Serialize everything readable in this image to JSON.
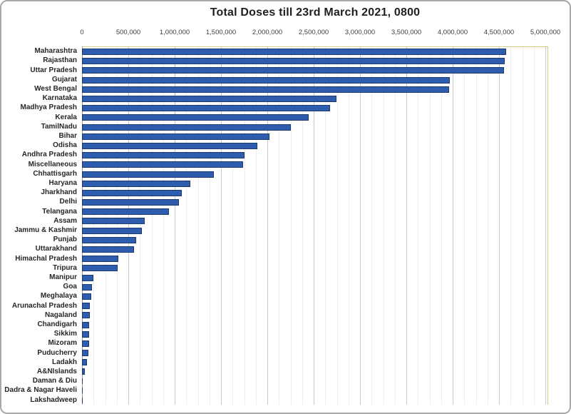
{
  "window": {
    "background": "#ffffff",
    "outer_border_color": "#a9a9a9"
  },
  "chart_data": {
    "type": "bar",
    "orientation": "horizontal",
    "title": "Total Doses till 23rd March 2021, 0800",
    "xlabel": "",
    "ylabel": "",
    "xlim": [
      0,
      5000000
    ],
    "x_major_unit": 500000,
    "x_minor_unit": 125000,
    "x_tick_labels": [
      "0",
      "500,000",
      "1,000,000",
      "1,500,000",
      "2,000,000",
      "2,500,000",
      "3,000,000",
      "3,500,000",
      "4,000,000",
      "4,500,000",
      "5,000,000"
    ],
    "grid": "vertical major and minor gridlines, ticks on top",
    "legend": "none",
    "categories": [
      "Maharashtra",
      "Rajasthan",
      "Uttar Pradesh",
      "Gujarat",
      "West Bengal",
      "Karnataka",
      "Madhya Pradesh",
      "Kerala",
      "TamilNadu",
      "Bihar",
      "Odisha",
      "Andhra Pradesh",
      "Miscellaneous",
      "Chhattisgarh",
      "Haryana",
      "Jharkhand",
      "Delhi",
      "Telangana",
      "Assam",
      "Jammu & Kashmir",
      "Punjab",
      "Uttarakhand",
      "Himachal Pradesh",
      "Tripura",
      "Manipur",
      "Goa",
      "Meghalaya",
      "Arunachal Pradesh",
      "Nagaland",
      "Chandigarh",
      "Sikkim",
      "Mizoram",
      "Puducherry",
      "Ladakh",
      "A&NIslands",
      "Daman & Diu",
      "Dadra & Nagar Haveli",
      "Lakshadweep"
    ],
    "values": [
      4560000,
      4545000,
      4540000,
      3955000,
      3945000,
      2730000,
      2660000,
      2430000,
      2240000,
      2010000,
      1875000,
      1740000,
      1720000,
      1410000,
      1155000,
      1060000,
      1030000,
      925000,
      665000,
      630000,
      570000,
      545000,
      375000,
      370000,
      105000,
      92000,
      87000,
      70000,
      68000,
      62000,
      61000,
      60000,
      54000,
      38000,
      16000,
      8000,
      7000,
      2000
    ],
    "colors": {
      "bar_fill": "#2e5cae",
      "bar_border": "#1e3a6a",
      "plot_border": "#d5cc83",
      "gridline_major": "#c9c9c9",
      "gridline_minor": "#ededed",
      "axis_line": "#9e9e9e",
      "title_text": "#1f1f1f",
      "tick_text": "#3d3d3d",
      "category_text": "#262626"
    }
  }
}
